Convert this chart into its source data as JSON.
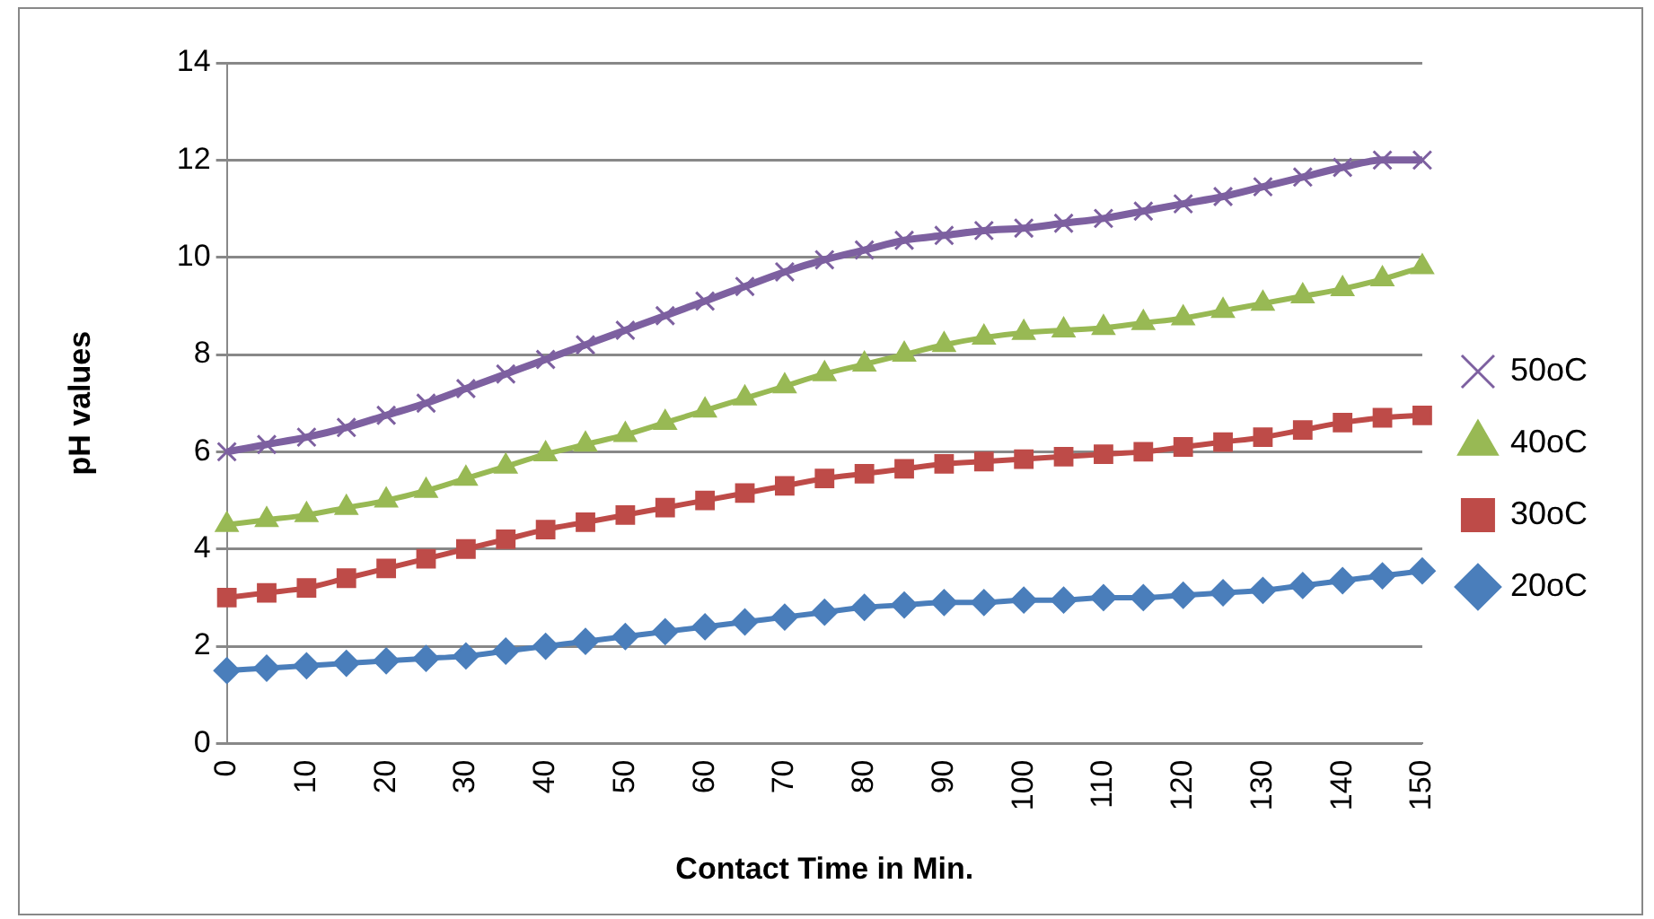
{
  "chart_data": {
    "type": "line",
    "xlabel": "Contact Time in Min.",
    "ylabel": "pH values",
    "categories": [
      "0",
      null,
      "10",
      null,
      "20",
      null,
      "30",
      null,
      "40",
      null,
      "50",
      null,
      "60",
      null,
      "70",
      null,
      "80",
      null,
      "90",
      null,
      "100",
      null,
      "110",
      null,
      "120",
      null,
      "130",
      null,
      "140",
      null,
      "150"
    ],
    "series": [
      {
        "name": "20oC",
        "color": "#4a7ebb",
        "marker": "diamond",
        "values": [
          1.5,
          1.55,
          1.6,
          1.65,
          1.7,
          1.75,
          1.8,
          1.9,
          2.0,
          2.1,
          2.2,
          2.3,
          2.4,
          2.5,
          2.6,
          2.7,
          2.8,
          2.85,
          2.9,
          2.9,
          2.95,
          2.95,
          3.0,
          3.0,
          3.05,
          3.1,
          3.15,
          3.25,
          3.35,
          3.45,
          3.55
        ]
      },
      {
        "name": "30oC",
        "color": "#be4b48",
        "marker": "square",
        "values": [
          3.0,
          3.1,
          3.2,
          3.4,
          3.6,
          3.8,
          4.0,
          4.2,
          4.4,
          4.55,
          4.7,
          4.85,
          5.0,
          5.15,
          5.3,
          5.45,
          5.55,
          5.65,
          5.75,
          5.8,
          5.85,
          5.9,
          5.95,
          6.0,
          6.1,
          6.2,
          6.3,
          6.45,
          6.6,
          6.7,
          6.75
        ]
      },
      {
        "name": "40oC",
        "color": "#98b954",
        "marker": "triangle",
        "values": [
          4.5,
          4.6,
          4.7,
          4.85,
          5.0,
          5.2,
          5.45,
          5.7,
          5.95,
          6.15,
          6.35,
          6.6,
          6.85,
          7.1,
          7.35,
          7.6,
          7.8,
          8.0,
          8.2,
          8.35,
          8.45,
          8.5,
          8.55,
          8.65,
          8.75,
          8.9,
          9.05,
          9.2,
          9.35,
          9.55,
          9.8
        ]
      },
      {
        "name": "50oC",
        "color": "#7d60a0",
        "marker": "cross",
        "values": [
          6.0,
          6.15,
          6.3,
          6.5,
          6.75,
          7.0,
          7.3,
          7.6,
          7.9,
          8.2,
          8.5,
          8.8,
          9.1,
          9.4,
          9.7,
          9.95,
          10.15,
          10.35,
          10.45,
          10.55,
          10.6,
          10.7,
          10.8,
          10.95,
          11.1,
          11.25,
          11.45,
          11.65,
          11.85,
          12.0,
          12.0
        ]
      }
    ],
    "ylim": [
      0,
      14
    ],
    "yticks": [
      0,
      2,
      4,
      6,
      8,
      10,
      12,
      14
    ],
    "grid": "y",
    "legend": "right"
  }
}
